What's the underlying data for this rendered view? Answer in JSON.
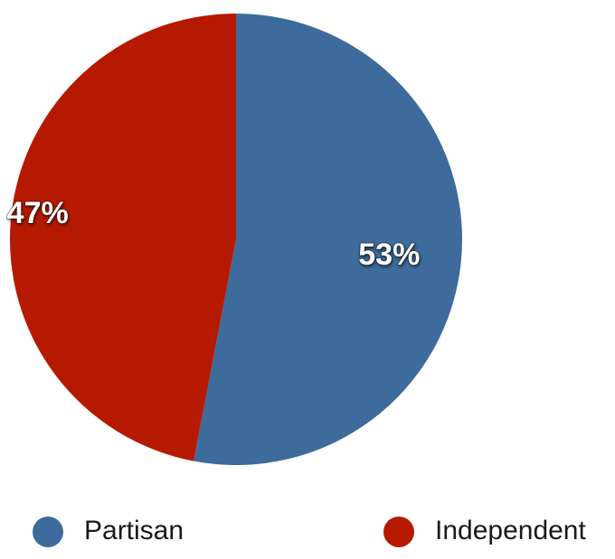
{
  "chart_data": {
    "type": "pie",
    "title": "",
    "slices": [
      {
        "name": "Partisan",
        "value": 53,
        "label": "53%",
        "color": "#3d6b9b"
      },
      {
        "name": "Independent",
        "value": 47,
        "label": "47%",
        "color": "#b51a00"
      }
    ],
    "start_angle_deg": 0,
    "direction": "clockwise",
    "legend": {
      "position": "bottom",
      "items": [
        "Partisan",
        "Independent"
      ]
    }
  }
}
